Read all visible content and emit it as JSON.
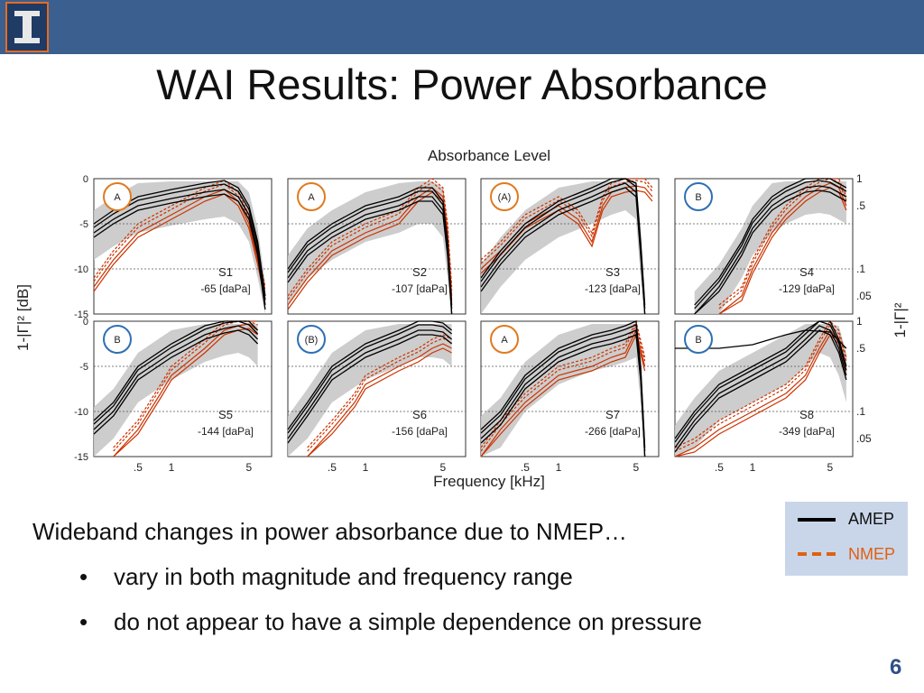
{
  "header": {
    "bar_color": "#3b5f8f",
    "logo_icon": "block-i-logo",
    "logo_accent": "#e86a1f"
  },
  "slide": {
    "title": "WAI Results: Power Absorbance",
    "body": "Wideband changes in power absorbance due to NMEP…",
    "bullets": [
      "vary in both magnitude and frequency range",
      "do not appear to have a simple dependence on pressure"
    ],
    "bullet_char": "•",
    "page_number": "6"
  },
  "legend": {
    "items": [
      {
        "label": "AMEP",
        "color": "#000000",
        "style": "solid"
      },
      {
        "label": "NMEP",
        "color": "#cc3300",
        "style": "dashed"
      }
    ]
  },
  "chart_data": {
    "type": "line",
    "title": "Absorbance Level",
    "xlabel": "Frequency [kHz]",
    "ylabel_left": "1-|Γ|² [dB]",
    "ylabel_right": "1-|Γ|²",
    "x_scale": "log",
    "xlim": [
      0.2,
      8
    ],
    "x_ticks": [
      0.5,
      1,
      5
    ],
    "x_tick_labels": [
      ".5",
      "1",
      "5"
    ],
    "ylim": [
      -15,
      0
    ],
    "y_ticks": [
      0,
      -5,
      -10,
      -15
    ],
    "y_tick_labels": [
      "0",
      "-5",
      "-10",
      "-15"
    ],
    "right_ticks_db": [
      0,
      -3,
      -10,
      -13
    ],
    "right_tick_labels": [
      "1",
      ".5",
      ".1",
      ".05"
    ],
    "grid": "dotted horizontal",
    "colors": {
      "amep": "#000000",
      "nmep": "#cc3300",
      "normative_band": "#c8c8c8"
    },
    "panels": [
      {
        "subject": "S1",
        "pressure": "-65 [daPa]",
        "group": "A",
        "group_color": "#e07a1f",
        "amep": [
          [
            0.2,
            -6
          ],
          [
            0.3,
            -4.5
          ],
          [
            0.5,
            -3
          ],
          [
            1,
            -2.2
          ],
          [
            2,
            -1.5
          ],
          [
            3,
            -1.2
          ],
          [
            4,
            -2
          ],
          [
            5,
            -4
          ],
          [
            6,
            -8
          ],
          [
            7,
            -14
          ]
        ],
        "nmep": [
          [
            0.2,
            -12
          ],
          [
            0.3,
            -9
          ],
          [
            0.5,
            -6
          ],
          [
            1,
            -4
          ],
          [
            2,
            -2
          ],
          [
            3,
            -1.2
          ],
          [
            4,
            -2.5
          ],
          [
            5,
            -5
          ],
          [
            6,
            -9
          ],
          [
            7,
            -13
          ]
        ]
      },
      {
        "subject": "S2",
        "pressure": "-107 [daPa]",
        "group": "A",
        "group_color": "#e07a1f",
        "amep": [
          [
            0.2,
            -11
          ],
          [
            0.3,
            -8
          ],
          [
            0.5,
            -6
          ],
          [
            1,
            -4
          ],
          [
            2,
            -3
          ],
          [
            3,
            -2
          ],
          [
            4,
            -2
          ],
          [
            5,
            -3.5
          ],
          [
            5.5,
            -8
          ],
          [
            6,
            -15
          ]
        ],
        "nmep": [
          [
            0.2,
            -14
          ],
          [
            0.3,
            -11
          ],
          [
            0.5,
            -8
          ],
          [
            1,
            -6
          ],
          [
            2,
            -4.5
          ],
          [
            3,
            -2
          ],
          [
            4,
            -1
          ],
          [
            5,
            -2
          ],
          [
            5.5,
            -6
          ],
          [
            6,
            -13
          ]
        ]
      },
      {
        "subject": "S3",
        "pressure": "-123 [daPa]",
        "group": "(A)",
        "group_color": "#e07a1f",
        "amep": [
          [
            0.2,
            -12
          ],
          [
            0.3,
            -9
          ],
          [
            0.5,
            -6
          ],
          [
            1,
            -3.5
          ],
          [
            2,
            -2
          ],
          [
            3,
            -1
          ],
          [
            4,
            -0.5
          ],
          [
            5,
            -1.5
          ],
          [
            5.5,
            -8
          ],
          [
            6,
            -15
          ]
        ],
        "nmep": [
          [
            0.2,
            -10
          ],
          [
            0.3,
            -8
          ],
          [
            0.5,
            -5
          ],
          [
            1,
            -3
          ],
          [
            1.5,
            -4.5
          ],
          [
            2,
            -7
          ],
          [
            2.5,
            -3
          ],
          [
            3,
            -1.5
          ],
          [
            4,
            -1
          ],
          [
            5,
            -0.8
          ],
          [
            6,
            -1
          ],
          [
            7,
            -2
          ]
        ]
      },
      {
        "subject": "S4",
        "pressure": "-129 [daPa]",
        "group": "B",
        "group_color": "#2e6fb5",
        "amep": [
          [
            0.3,
            -15
          ],
          [
            0.5,
            -12
          ],
          [
            0.8,
            -8
          ],
          [
            1,
            -5.5
          ],
          [
            1.5,
            -3
          ],
          [
            2,
            -2
          ],
          [
            3,
            -1
          ],
          [
            4,
            -0.8
          ],
          [
            5,
            -1
          ],
          [
            7,
            -2
          ]
        ],
        "nmep": [
          [
            0.5,
            -15
          ],
          [
            0.8,
            -13
          ],
          [
            1,
            -10
          ],
          [
            1.5,
            -6
          ],
          [
            2,
            -4
          ],
          [
            3,
            -2
          ],
          [
            4,
            -1
          ],
          [
            5,
            -0.5
          ],
          [
            6,
            -1
          ],
          [
            7,
            -3
          ]
        ]
      },
      {
        "subject": "S5",
        "pressure": "-144 [daPa]",
        "group": "B",
        "group_color": "#2e6fb5",
        "amep": [
          [
            0.2,
            -12
          ],
          [
            0.3,
            -10
          ],
          [
            0.5,
            -6
          ],
          [
            1,
            -3.5
          ],
          [
            2,
            -1.5
          ],
          [
            3,
            -0.8
          ],
          [
            4,
            -0.5
          ],
          [
            5,
            -1
          ],
          [
            6,
            -2
          ]
        ],
        "nmep": [
          [
            0.3,
            -15
          ],
          [
            0.5,
            -12
          ],
          [
            0.8,
            -8
          ],
          [
            1,
            -6
          ],
          [
            2,
            -3
          ],
          [
            3,
            -1
          ],
          [
            4,
            -0.5
          ],
          [
            5,
            -0.3
          ],
          [
            6,
            -1
          ]
        ]
      },
      {
        "subject": "S6",
        "pressure": "-156 [daPa]",
        "group": "(B)",
        "group_color": "#2e6fb5",
        "amep": [
          [
            0.2,
            -13
          ],
          [
            0.3,
            -10
          ],
          [
            0.5,
            -6
          ],
          [
            1,
            -3.5
          ],
          [
            2,
            -2
          ],
          [
            3,
            -1
          ],
          [
            4,
            -1
          ],
          [
            5,
            -1.2
          ],
          [
            6,
            -2
          ]
        ],
        "nmep": [
          [
            0.3,
            -15
          ],
          [
            0.5,
            -12
          ],
          [
            0.8,
            -9
          ],
          [
            1,
            -7
          ],
          [
            2,
            -5
          ],
          [
            3,
            -4
          ],
          [
            4,
            -3
          ],
          [
            5,
            -2.5
          ],
          [
            6,
            -3
          ]
        ]
      },
      {
        "subject": "S7",
        "pressure": "-266 [daPa]",
        "group": "A",
        "group_color": "#e07a1f",
        "amep": [
          [
            0.2,
            -13
          ],
          [
            0.3,
            -11
          ],
          [
            0.5,
            -7
          ],
          [
            1,
            -4
          ],
          [
            2,
            -2.5
          ],
          [
            3,
            -2
          ],
          [
            4,
            -1.5
          ],
          [
            5,
            -1
          ],
          [
            5.5,
            -6
          ],
          [
            6,
            -15
          ]
        ],
        "nmep": [
          [
            0.2,
            -15
          ],
          [
            0.3,
            -12
          ],
          [
            0.5,
            -9
          ],
          [
            1,
            -6
          ],
          [
            2,
            -5
          ],
          [
            3,
            -4
          ],
          [
            4,
            -3.5
          ],
          [
            5,
            -1
          ],
          [
            6,
            -5
          ]
        ]
      },
      {
        "subject": "S8",
        "pressure": "-349 [daPa]",
        "group": "B",
        "group_color": "#2e6fb5",
        "amep": [
          [
            0.2,
            -14
          ],
          [
            0.3,
            -11
          ],
          [
            0.5,
            -8
          ],
          [
            1,
            -6
          ],
          [
            2,
            -4
          ],
          [
            3,
            -2
          ],
          [
            4,
            -0.5
          ],
          [
            5,
            -1
          ],
          [
            6,
            -3
          ],
          [
            7,
            -6
          ]
        ],
        "nmep": [
          [
            0.2,
            -15
          ],
          [
            0.3,
            -14
          ],
          [
            0.5,
            -12
          ],
          [
            1,
            -10
          ],
          [
            2,
            -8
          ],
          [
            3,
            -6
          ],
          [
            4,
            -3
          ],
          [
            5,
            -1
          ],
          [
            6,
            -2
          ],
          [
            7,
            -5
          ]
        ],
        "amep_flat": [
          [
            0.2,
            -3
          ],
          [
            0.5,
            -3
          ],
          [
            1,
            -2.6
          ],
          [
            2,
            -1.5
          ],
          [
            3,
            -1
          ],
          [
            5,
            -1.2
          ],
          [
            7,
            -3
          ]
        ]
      }
    ]
  }
}
